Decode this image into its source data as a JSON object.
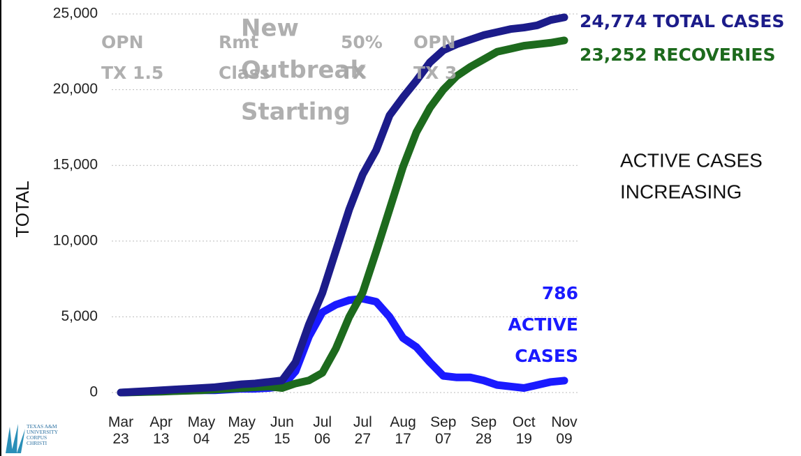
{
  "chart_data": {
    "type": "line",
    "y_label": "TOTAL",
    "categories": [
      "Mar 23",
      null,
      null,
      "Apr 13",
      null,
      null,
      "May 04",
      null,
      null,
      "May 25",
      null,
      null,
      "Jun 15",
      null,
      null,
      "Jul 06",
      null,
      null,
      "Jul 27",
      null,
      null,
      "Aug 17",
      null,
      null,
      "Sep 07",
      null,
      null,
      "Sep 28",
      null,
      null,
      "Oct 19",
      null,
      null,
      "Nov 09"
    ],
    "series": [
      {
        "name": "TOTAL CASES",
        "color": "#1c1c8a",
        "values": [
          0,
          50,
          100,
          150,
          200,
          250,
          300,
          350,
          450,
          550,
          600,
          700,
          800,
          2000,
          4500,
          6580,
          9350,
          12100,
          14400,
          16000,
          18300,
          19500,
          20600,
          21800,
          22600,
          23000,
          23300,
          23600,
          23800,
          24000,
          24100,
          24250,
          24600,
          24774
        ]
      },
      {
        "name": "RECOVERIES",
        "color": "#1d6a1d",
        "values": [
          0,
          20,
          40,
          60,
          90,
          120,
          150,
          200,
          250,
          300,
          350,
          400,
          300,
          600,
          800,
          1300,
          2900,
          5000,
          6600,
          9300,
          12100,
          14900,
          17200,
          18800,
          20000,
          20900,
          21500,
          22000,
          22500,
          22700,
          22900,
          23000,
          23100,
          23252
        ]
      },
      {
        "name": "ACTIVE CASES",
        "color": "#1a1aff",
        "values": [
          0,
          30,
          60,
          90,
          110,
          130,
          150,
          150,
          200,
          250,
          250,
          300,
          400,
          1400,
          3700,
          5300,
          5800,
          6100,
          6200,
          6000,
          5000,
          3600,
          3000,
          2000,
          1100,
          1000,
          1000,
          800,
          500,
          400,
          300,
          500,
          700,
          786
        ]
      }
    ],
    "ylim": [
      0,
      25000
    ],
    "yticks": [
      0,
      {
        "value": 5000,
        "label": "5,000"
      },
      {
        "value": 10000,
        "label": "10,000"
      },
      {
        "value": 15000,
        "label": "15,000"
      },
      {
        "value": 20000,
        "label": "20,000"
      },
      {
        "value": 25000,
        "label": "25,000"
      }
    ],
    "grid": true,
    "end_labels": [
      {
        "lines": [
          "24,774 TOTAL CASES"
        ],
        "color": "#1c1c8a"
      },
      {
        "lines": [
          "23,252 RECOVERIES"
        ],
        "color": "#1d6a1d"
      },
      {
        "lines": [
          "786",
          "ACTIVE",
          "CASES"
        ],
        "color": "#1a1aff"
      }
    ],
    "events": [
      {
        "lines": [
          "OPN",
          "TX 1.5"
        ]
      },
      {
        "lines": [
          "Rmt",
          "Class"
        ]
      },
      {
        "lines": [
          "New",
          "Outbreak",
          "Starting"
        ]
      },
      {
        "lines": [
          "50%",
          "TX"
        ]
      },
      {
        "lines": [
          "OPN",
          "TX 3"
        ]
      }
    ],
    "note": {
      "lines": [
        "ACTIVE CASES",
        "INCREASING"
      ]
    },
    "logo": [
      "TEXAS A&M",
      "UNIVERSITY",
      "CORPUS",
      "CHRISTI"
    ]
  }
}
